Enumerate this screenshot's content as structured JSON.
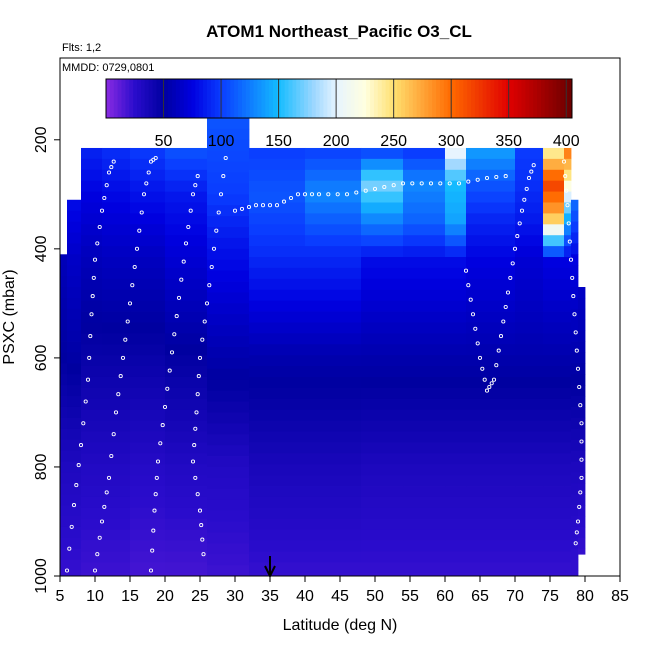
{
  "chart_data": {
    "type": "heatmap",
    "title": "ATOM1 Northeast_Pacific O3_CL",
    "flights_label": "Flts: 1,2",
    "dates_label": "MMDD: 0729,0801",
    "xlabel": "Latitude (deg N)",
    "ylabel": "PSXC (mbar)",
    "xlim": [
      5,
      85
    ],
    "ylim": [
      1000,
      50
    ],
    "x_ticks": [
      "5",
      "10",
      "15",
      "20",
      "25",
      "30",
      "35",
      "40",
      "45",
      "50",
      "55",
      "60",
      "65",
      "70",
      "75",
      "80",
      "85"
    ],
    "y_ticks": [
      "200",
      "400",
      "600",
      "800",
      "1000"
    ],
    "colorbar": {
      "range": [
        0,
        405
      ],
      "ticks": [
        "50",
        "100",
        "150",
        "200",
        "250",
        "300",
        "350",
        "400"
      ],
      "stops": [
        {
          "v": 0,
          "c": "#8a2be2"
        },
        {
          "v": 25,
          "c": "#2a0ccc"
        },
        {
          "v": 50,
          "c": "#0000a0"
        },
        {
          "v": 75,
          "c": "#0000e0"
        },
        {
          "v": 100,
          "c": "#0a3cff"
        },
        {
          "v": 150,
          "c": "#14bcff"
        },
        {
          "v": 180,
          "c": "#9ad6ff"
        },
        {
          "v": 200,
          "c": "#e6f4ff"
        },
        {
          "v": 225,
          "c": "#ffffe0"
        },
        {
          "v": 250,
          "c": "#ffe070"
        },
        {
          "v": 300,
          "c": "#ff6a00"
        },
        {
          "v": 350,
          "c": "#e00000"
        },
        {
          "v": 405,
          "c": "#6a0000"
        }
      ]
    },
    "marker_latitude": 35,
    "columns": [
      {
        "lat0": 5,
        "lat1": 6,
        "ptop": 410,
        "pbot": 1000,
        "o3": [
          [
            410,
            60
          ],
          [
            600,
            50
          ],
          [
            800,
            32
          ],
          [
            1000,
            22
          ]
        ]
      },
      {
        "lat0": 6,
        "lat1": 8,
        "ptop": 310,
        "pbot": 1000,
        "o3": [
          [
            310,
            80
          ],
          [
            420,
            65
          ],
          [
            600,
            52
          ],
          [
            800,
            32
          ],
          [
            1000,
            22
          ]
        ]
      },
      {
        "lat0": 8,
        "lat1": 11,
        "ptop": 215,
        "pbot": 1000,
        "o3": [
          [
            215,
            90
          ],
          [
            300,
            75
          ],
          [
            420,
            60
          ],
          [
            600,
            45
          ],
          [
            800,
            30
          ],
          [
            1000,
            20
          ]
        ]
      },
      {
        "lat0": 11,
        "lat1": 15,
        "ptop": 215,
        "pbot": 1000,
        "o3": [
          [
            215,
            95
          ],
          [
            300,
            78
          ],
          [
            420,
            62
          ],
          [
            600,
            45
          ],
          [
            800,
            30
          ],
          [
            1000,
            20
          ]
        ]
      },
      {
        "lat0": 15,
        "lat1": 20,
        "ptop": 215,
        "pbot": 1000,
        "o3": [
          [
            215,
            100
          ],
          [
            300,
            82
          ],
          [
            420,
            62
          ],
          [
            600,
            45
          ],
          [
            800,
            28
          ],
          [
            1000,
            18
          ]
        ]
      },
      {
        "lat0": 20,
        "lat1": 26,
        "ptop": 215,
        "pbot": 1000,
        "o3": [
          [
            215,
            110
          ],
          [
            300,
            85
          ],
          [
            400,
            72
          ],
          [
            600,
            48
          ],
          [
            800,
            30
          ],
          [
            1000,
            18
          ]
        ]
      },
      {
        "lat0": 26,
        "lat1": 32,
        "ptop": 160,
        "pbot": 1000,
        "o3": [
          [
            160,
            110
          ],
          [
            215,
            105
          ],
          [
            300,
            100
          ],
          [
            400,
            82
          ],
          [
            600,
            55
          ],
          [
            800,
            30
          ],
          [
            1000,
            20
          ]
        ]
      },
      {
        "lat0": 32,
        "lat1": 40,
        "ptop": 215,
        "pbot": 1000,
        "o3": [
          [
            215,
            100
          ],
          [
            300,
            110
          ],
          [
            400,
            95
          ],
          [
            600,
            55
          ],
          [
            800,
            35
          ],
          [
            1000,
            22
          ]
        ]
      },
      {
        "lat0": 40,
        "lat1": 48,
        "ptop": 215,
        "pbot": 1000,
        "o3": [
          [
            215,
            100
          ],
          [
            300,
            130
          ],
          [
            400,
            95
          ],
          [
            600,
            55
          ],
          [
            800,
            35
          ],
          [
            1000,
            22
          ]
        ]
      },
      {
        "lat0": 48,
        "lat1": 54,
        "ptop": 215,
        "pbot": 1000,
        "o3": [
          [
            215,
            95
          ],
          [
            280,
            175
          ],
          [
            330,
            140
          ],
          [
            420,
            80
          ],
          [
            600,
            55
          ],
          [
            800,
            33
          ],
          [
            1000,
            22
          ]
        ]
      },
      {
        "lat0": 54,
        "lat1": 60,
        "ptop": 215,
        "pbot": 1000,
        "o3": [
          [
            215,
            95
          ],
          [
            280,
            130
          ],
          [
            350,
            115
          ],
          [
            420,
            80
          ],
          [
            600,
            55
          ],
          [
            800,
            33
          ],
          [
            1000,
            22
          ]
        ]
      },
      {
        "lat0": 60,
        "lat1": 63,
        "ptop": 215,
        "pbot": 1000,
        "o3": [
          [
            215,
            210
          ],
          [
            280,
            150
          ],
          [
            350,
            140
          ],
          [
            420,
            80
          ],
          [
            600,
            55
          ],
          [
            800,
            33
          ],
          [
            1000,
            22
          ]
        ]
      },
      {
        "lat0": 63,
        "lat1": 70,
        "ptop": 215,
        "pbot": 1000,
        "o3": [
          [
            215,
            140
          ],
          [
            280,
            110
          ],
          [
            350,
            90
          ],
          [
            420,
            75
          ],
          [
            600,
            55
          ],
          [
            800,
            33
          ],
          [
            1000,
            22
          ]
        ]
      },
      {
        "lat0": 70,
        "lat1": 74,
        "ptop": 215,
        "pbot": 1000,
        "o3": [
          [
            215,
            100
          ],
          [
            280,
            95
          ],
          [
            350,
            85
          ],
          [
            420,
            70
          ],
          [
            600,
            55
          ],
          [
            800,
            33
          ],
          [
            1000,
            22
          ]
        ]
      },
      {
        "lat0": 74,
        "lat1": 77,
        "ptop": 215,
        "pbot": 1000,
        "o3": [
          [
            215,
            230
          ],
          [
            280,
            320
          ],
          [
            340,
            270
          ],
          [
            420,
            75
          ],
          [
            600,
            55
          ],
          [
            800,
            33
          ],
          [
            1000,
            22
          ]
        ]
      },
      {
        "lat0": 77,
        "lat1": 78,
        "ptop": 215,
        "pbot": 1000,
        "o3": [
          [
            215,
            300
          ],
          [
            280,
            230
          ],
          [
            340,
            150
          ],
          [
            420,
            75
          ],
          [
            600,
            55
          ],
          [
            800,
            33
          ],
          [
            1000,
            22
          ]
        ]
      },
      {
        "lat0": 78,
        "lat1": 79,
        "ptop": 310,
        "pbot": 1000,
        "o3": [
          [
            310,
            120
          ],
          [
            420,
            75
          ],
          [
            600,
            55
          ],
          [
            800,
            33
          ],
          [
            1000,
            22
          ]
        ]
      },
      {
        "lat0": 79,
        "lat1": 80,
        "ptop": 470,
        "pbot": 960,
        "o3": [
          [
            470,
            65
          ],
          [
            600,
            55
          ],
          [
            800,
            33
          ],
          [
            960,
            22
          ]
        ]
      }
    ],
    "tracks": [
      {
        "points": [
          [
            6,
            990
          ],
          [
            7,
            870
          ],
          [
            8,
            760
          ],
          [
            9,
            640
          ],
          [
            9.5,
            520
          ],
          [
            10,
            420
          ],
          [
            11,
            330
          ],
          [
            12,
            260
          ],
          [
            13,
            230
          ]
        ]
      },
      {
        "points": [
          [
            10,
            990
          ],
          [
            11,
            900
          ],
          [
            12,
            820
          ],
          [
            13,
            700
          ],
          [
            14,
            600
          ],
          [
            15,
            500
          ],
          [
            16,
            400
          ],
          [
            17,
            300
          ],
          [
            18,
            240
          ],
          [
            19,
            230
          ]
        ]
      },
      {
        "points": [
          [
            18,
            990
          ],
          [
            18.5,
            880
          ],
          [
            19,
            790
          ],
          [
            20,
            690
          ],
          [
            21,
            590
          ],
          [
            22,
            490
          ],
          [
            23,
            390
          ],
          [
            24,
            300
          ],
          [
            25,
            250
          ]
        ]
      },
      {
        "points": [
          [
            25.5,
            960
          ],
          [
            25,
            880
          ],
          [
            24,
            790
          ],
          [
            24.5,
            700
          ],
          [
            25,
            600
          ],
          [
            26,
            500
          ],
          [
            27,
            400
          ],
          [
            28,
            300
          ],
          [
            29,
            200
          ]
        ]
      },
      {
        "points": [
          [
            30,
            330
          ],
          [
            33,
            320
          ],
          [
            36,
            320
          ],
          [
            39,
            300
          ],
          [
            42,
            300
          ],
          [
            46,
            300
          ],
          [
            50,
            290
          ],
          [
            54,
            280
          ],
          [
            58,
            280
          ],
          [
            62,
            280
          ],
          [
            66,
            270
          ],
          [
            70,
            265
          ]
        ]
      },
      {
        "points": [
          [
            63,
            440
          ],
          [
            64,
            520
          ],
          [
            65,
            600
          ],
          [
            66,
            660
          ],
          [
            67,
            640
          ],
          [
            68,
            560
          ],
          [
            69,
            480
          ],
          [
            70,
            400
          ],
          [
            71,
            330
          ],
          [
            72,
            270
          ],
          [
            73,
            235
          ]
        ]
      },
      {
        "points": [
          [
            77,
            240
          ],
          [
            77.5,
            320
          ],
          [
            78,
            420
          ],
          [
            78.5,
            520
          ],
          [
            79,
            620
          ],
          [
            79.5,
            720
          ],
          [
            79.5,
            820
          ],
          [
            79,
            900
          ],
          [
            78.5,
            960
          ]
        ]
      }
    ]
  }
}
